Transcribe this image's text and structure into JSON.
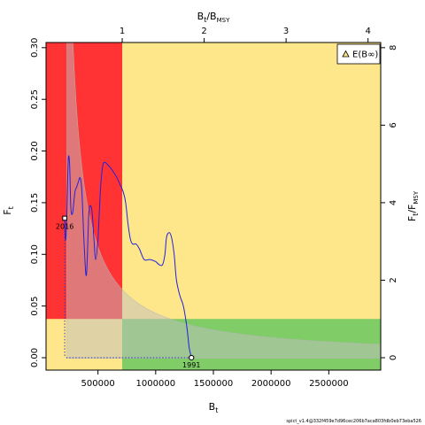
{
  "chart_data": {
    "type": "line",
    "xlabel": "B_t",
    "ylabel": "F_t",
    "top_label": "B_t/B_MSY",
    "right_label": "F_t/F_MSY",
    "xlim": [
      50000,
      2950000
    ],
    "ylim": [
      -0.012,
      0.305
    ],
    "bmsy": 710000,
    "fmsy": 0.0375,
    "x_ticks": [
      500000,
      1000000,
      1500000,
      2000000,
      2500000
    ],
    "x_tick_labels": [
      "500000",
      "1000000",
      "1500000",
      "2000000",
      "2500000"
    ],
    "y_ticks": [
      0.0,
      0.05,
      0.1,
      0.15,
      0.2,
      0.25,
      0.3
    ],
    "y_tick_labels": [
      "0.00",
      "0.05",
      "0.10",
      "0.15",
      "0.20",
      "0.25",
      "0.30"
    ],
    "top_ticks": [
      1,
      2,
      3,
      4
    ],
    "top_tick_labels": [
      "1",
      "2",
      "3",
      "4"
    ],
    "right_ticks": [
      0,
      2,
      4,
      6,
      8
    ],
    "right_tick_labels": [
      "0",
      "2",
      "4",
      "6",
      "8"
    ],
    "series": [
      {
        "color": "#2222dd",
        "x": [
          1310000,
          1290000,
          1270000,
          1240000,
          1210000,
          1180000,
          1160000,
          1140000,
          1120000,
          1095000,
          1080000,
          1060000,
          1030000,
          1000000,
          950000,
          900000,
          860000,
          830000,
          800000,
          780000,
          760000,
          740000,
          720000,
          690000,
          660000,
          620000,
          590000,
          560000,
          540000,
          520000,
          500000,
          480000,
          465000,
          450000,
          435000,
          420000,
          400000,
          380000,
          360000,
          345000,
          330000,
          315000,
          300000,
          280000,
          265000,
          255000,
          245000,
          238000,
          232000,
          225000,
          218000,
          212000
        ],
        "y": [
          0.0,
          0.01,
          0.03,
          0.05,
          0.06,
          0.075,
          0.1,
          0.115,
          0.121,
          0.117,
          0.1,
          0.09,
          0.09,
          0.093,
          0.095,
          0.095,
          0.105,
          0.11,
          0.11,
          0.115,
          0.13,
          0.15,
          0.16,
          0.168,
          0.175,
          0.182,
          0.186,
          0.189,
          0.185,
          0.16,
          0.115,
          0.095,
          0.115,
          0.14,
          0.147,
          0.138,
          0.08,
          0.11,
          0.162,
          0.174,
          0.17,
          0.165,
          0.16,
          0.14,
          0.145,
          0.185,
          0.195,
          0.175,
          0.145,
          0.12,
          0.115,
          0.135
        ]
      }
    ],
    "annotations": [
      {
        "text": "1991",
        "x": 1310000,
        "y": 0.0
      },
      {
        "text": "2016",
        "x": 212000,
        "y": 0.135
      }
    ],
    "colors": {
      "red": "#ff3333",
      "pink": "#e5a3a3",
      "yellow": "#fee78a",
      "green": "#80cc66",
      "gray_ci": "#c0c0c0",
      "line": "#2222dd",
      "dotted": "#3333cc"
    },
    "legend": {
      "label": "E(B∞)",
      "position": "top-right"
    },
    "footer": "spict_v1.4@332f459e7d96cec206b7aca803fdb0eb73eba526"
  }
}
